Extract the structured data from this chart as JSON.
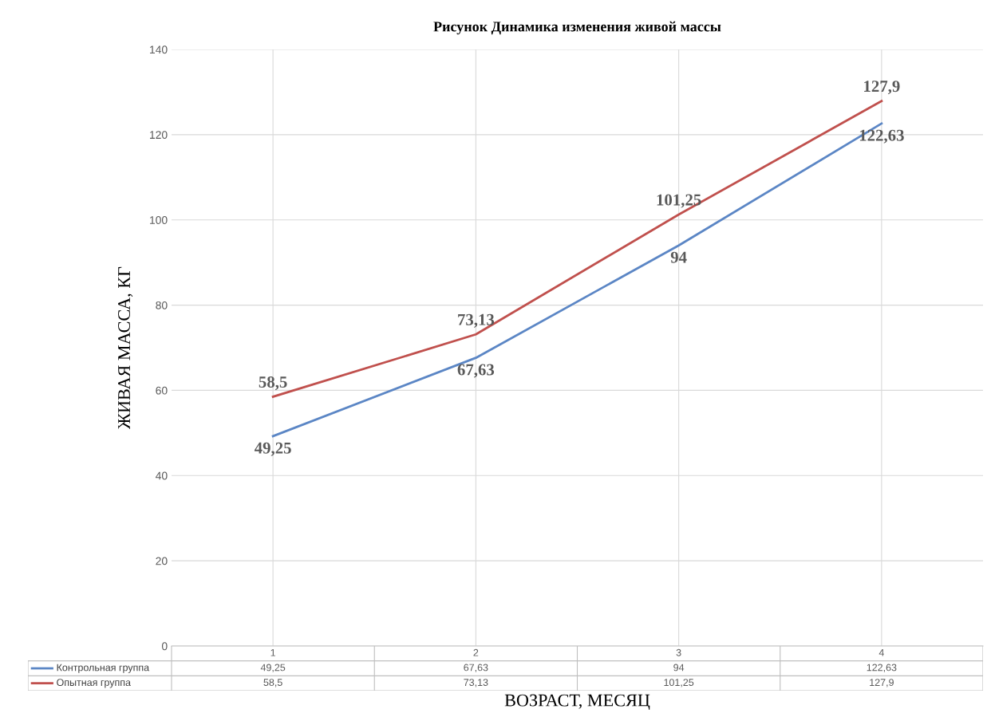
{
  "chart_data": {
    "type": "line",
    "title": "Рисунок Динамика изменения живой массы",
    "xlabel": "ВОЗРАСТ, МЕСЯЦ",
    "ylabel": "ЖИВАЯ МАССА, КГ",
    "categories": [
      "1",
      "2",
      "3",
      "4"
    ],
    "series": [
      {
        "name": "Контрольная группа",
        "color": "#5b86c5",
        "values": [
          49.25,
          67.63,
          94,
          122.63
        ],
        "value_labels": [
          "49,25",
          "67,63",
          "94",
          "122,63"
        ]
      },
      {
        "name": "Опытная группа",
        "color": "#c0504d",
        "values": [
          58.5,
          73.13,
          101.25,
          127.9
        ],
        "value_labels": [
          "58,5",
          "73,13",
          "101,25",
          "127,9"
        ]
      }
    ],
    "ylim": [
      0,
      140
    ],
    "yticks": [
      0,
      20,
      40,
      60,
      80,
      100,
      120,
      140
    ],
    "grid": true,
    "legend": "bottom",
    "marker": "none",
    "line_style": "solid"
  }
}
